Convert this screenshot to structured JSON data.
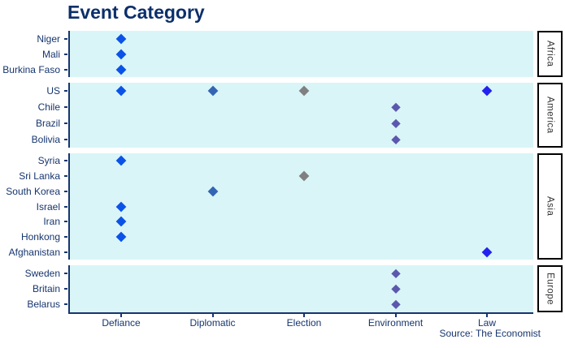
{
  "chart": {
    "title": "Event Category",
    "source": "Source: The Economist"
  },
  "chart_data": {
    "type": "scatter",
    "subtype": "faceted-dot-plot",
    "title": "Event Category",
    "xlabel": "",
    "ylabel": "",
    "legend": "none",
    "grid": false,
    "panel_background": "#d9f5f7",
    "marker_shape": "diamond",
    "x_categories": [
      "Defiance",
      "Diplomatic",
      "Election",
      "Environment",
      "Law"
    ],
    "category_colors": {
      "Defiance": "#0b52e8",
      "Diplomatic": "#3465b4",
      "Election": "#808080",
      "Environment": "#5b58ad",
      "Law": "#2222ee"
    },
    "facets": [
      {
        "label": "Africa",
        "rows": [
          {
            "country": "Niger",
            "categories": [
              "Defiance"
            ]
          },
          {
            "country": "Mali",
            "categories": [
              "Defiance"
            ]
          },
          {
            "country": "Burkina Faso",
            "categories": [
              "Defiance"
            ]
          }
        ]
      },
      {
        "label": "America",
        "rows": [
          {
            "country": "US",
            "categories": [
              "Defiance",
              "Diplomatic",
              "Election",
              "Law"
            ]
          },
          {
            "country": "Chile",
            "categories": [
              "Environment"
            ]
          },
          {
            "country": "Brazil",
            "categories": [
              "Environment"
            ]
          },
          {
            "country": "Bolivia",
            "categories": [
              "Environment"
            ]
          }
        ]
      },
      {
        "label": "Asia",
        "rows": [
          {
            "country": "Syria",
            "categories": [
              "Defiance"
            ]
          },
          {
            "country": "Sri Lanka",
            "categories": [
              "Election"
            ]
          },
          {
            "country": "South Korea",
            "categories": [
              "Diplomatic"
            ]
          },
          {
            "country": "Israel",
            "categories": [
              "Defiance"
            ]
          },
          {
            "country": "Iran",
            "categories": [
              "Defiance"
            ]
          },
          {
            "country": "Honkong",
            "categories": [
              "Defiance"
            ]
          },
          {
            "country": "Afghanistan",
            "categories": [
              "Law"
            ]
          }
        ]
      },
      {
        "label": "Europe",
        "rows": [
          {
            "country": "Sweden",
            "categories": [
              "Environment"
            ]
          },
          {
            "country": "Britain",
            "categories": [
              "Environment"
            ]
          },
          {
            "country": "Belarus",
            "categories": [
              "Environment"
            ]
          }
        ]
      }
    ]
  }
}
